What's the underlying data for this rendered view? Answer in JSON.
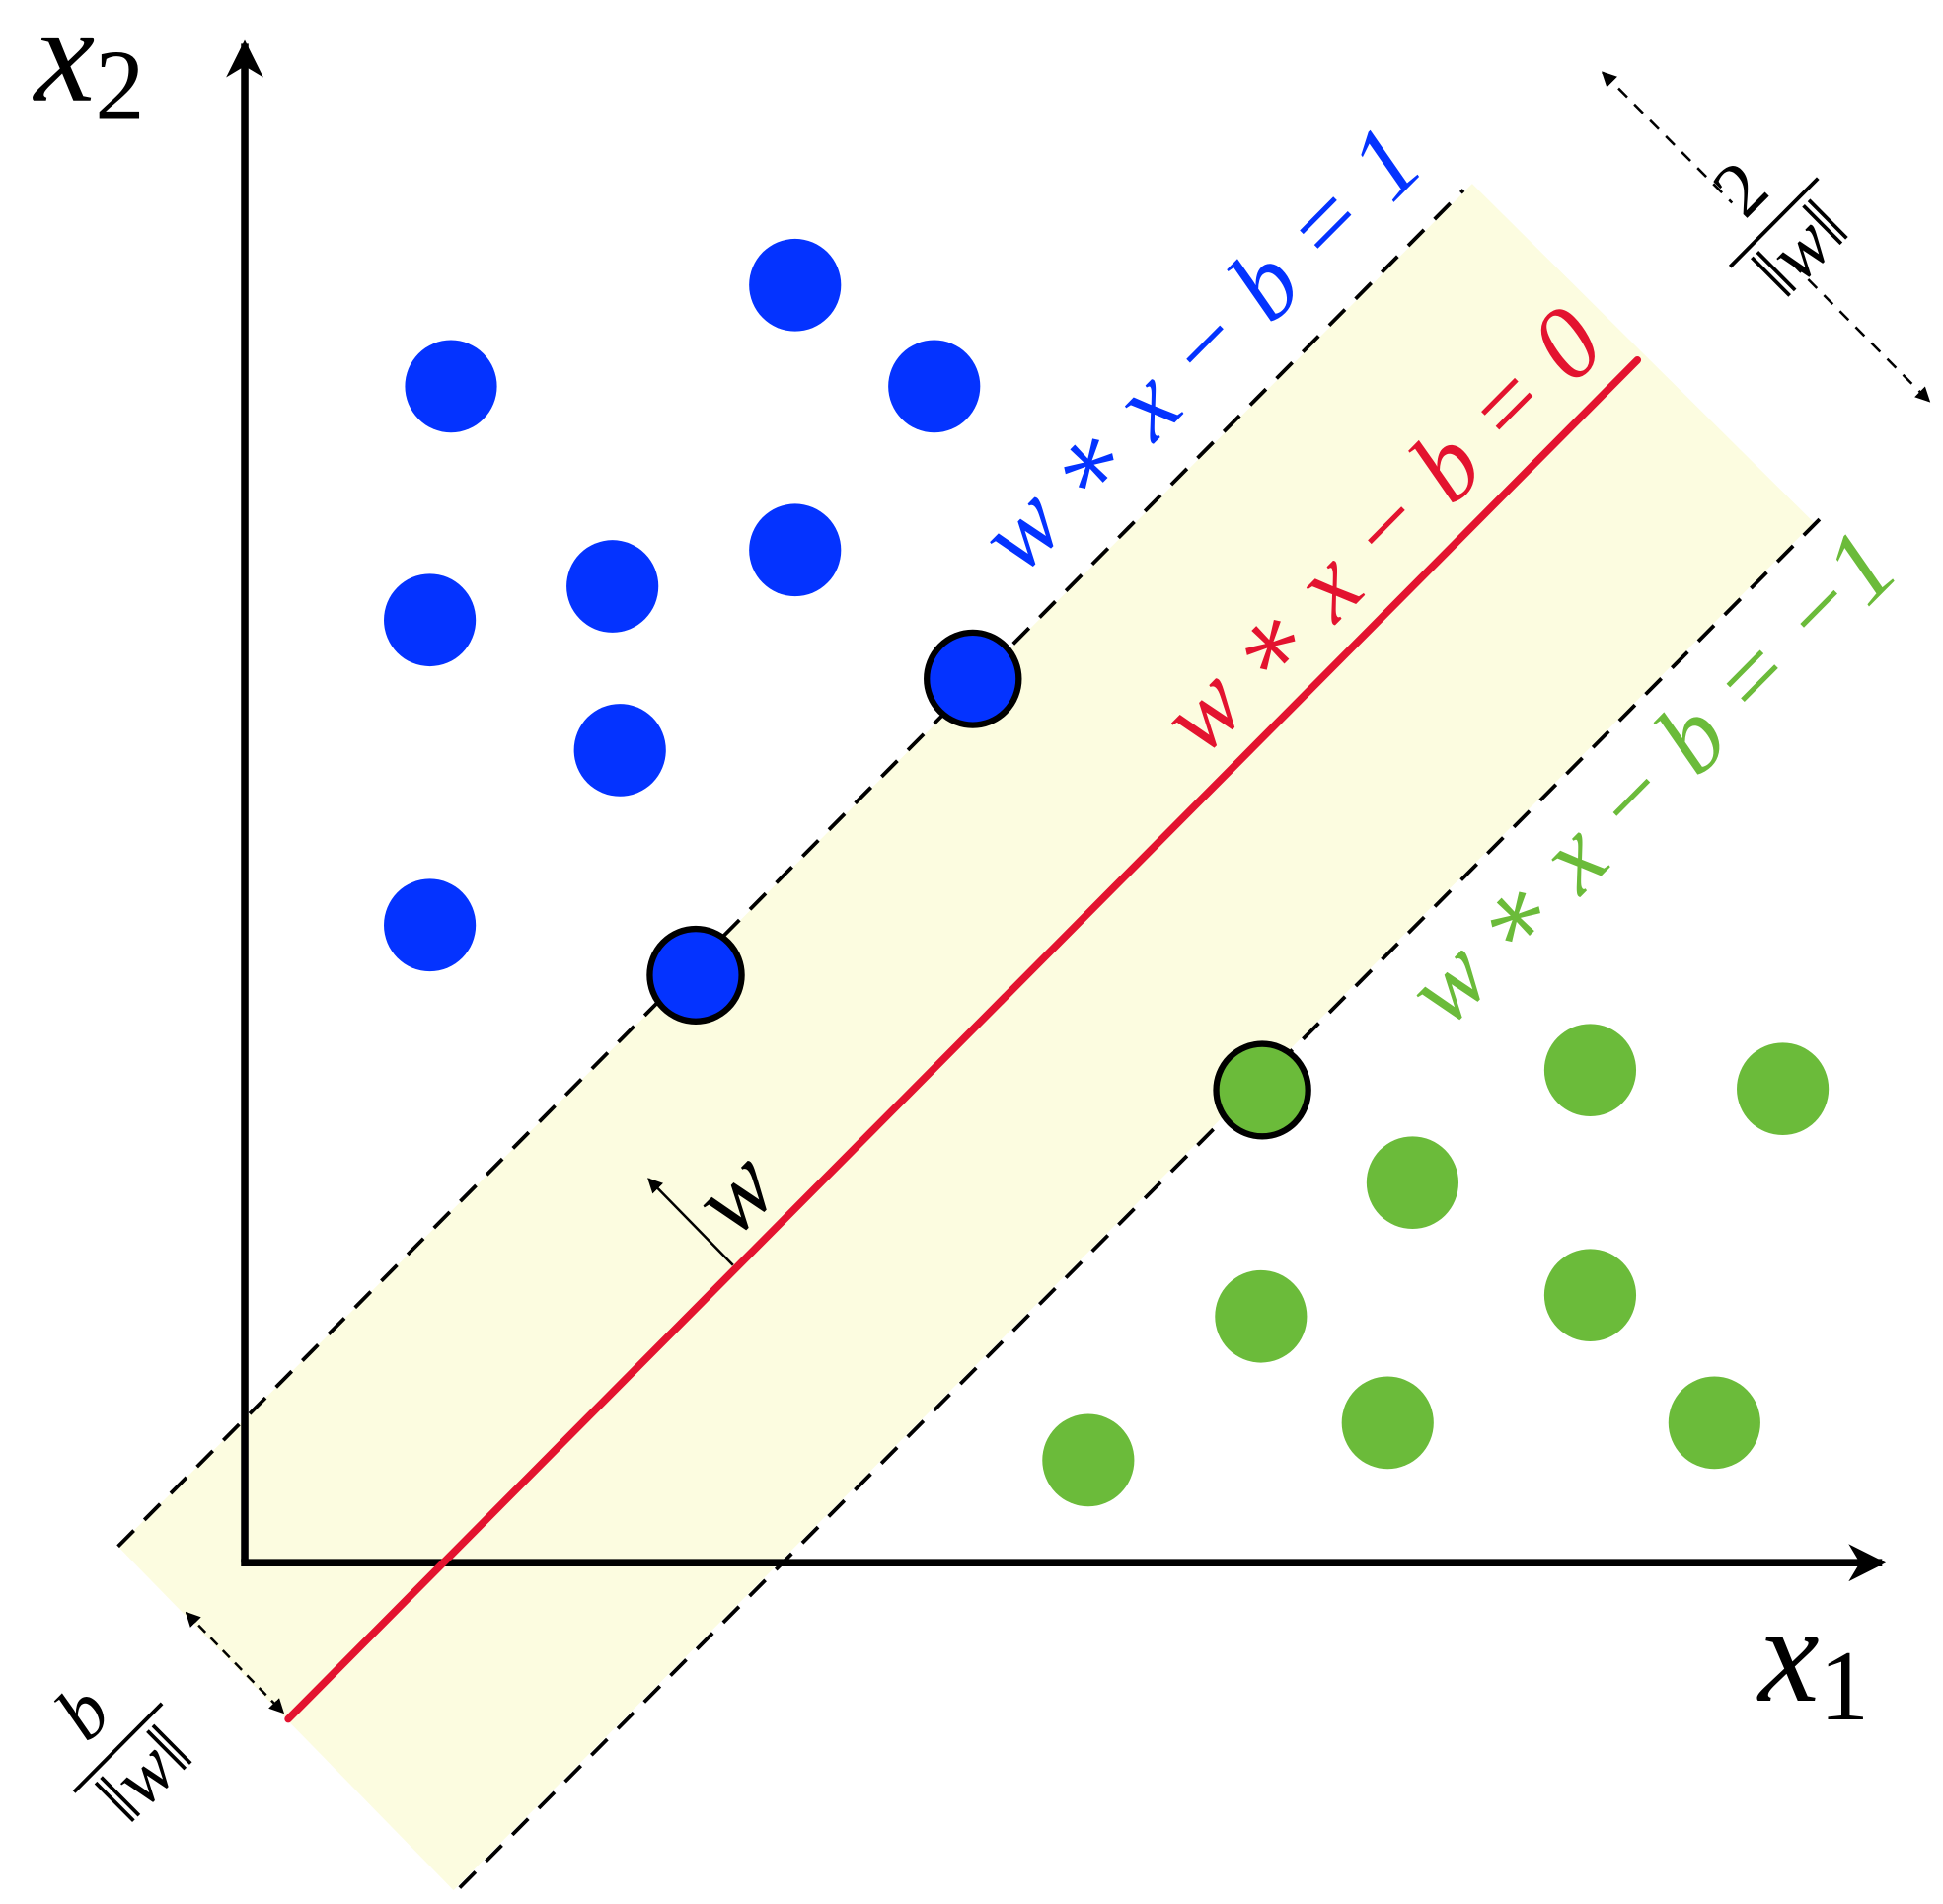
{
  "axes": {
    "x1": {
      "symbol": "x",
      "subscript": "1"
    },
    "x2": {
      "symbol": "x",
      "subscript": "2"
    }
  },
  "lines": {
    "positive": "w ∗ x − b = 1",
    "decision": "w ∗ x − b = 0",
    "negative": "w ∗ x − b = −1"
  },
  "normal_vector": "w",
  "margin": {
    "numerator": "2",
    "denominator": "‖w‖"
  },
  "offset": {
    "numerator": "b",
    "denominator": "‖w‖"
  }
}
